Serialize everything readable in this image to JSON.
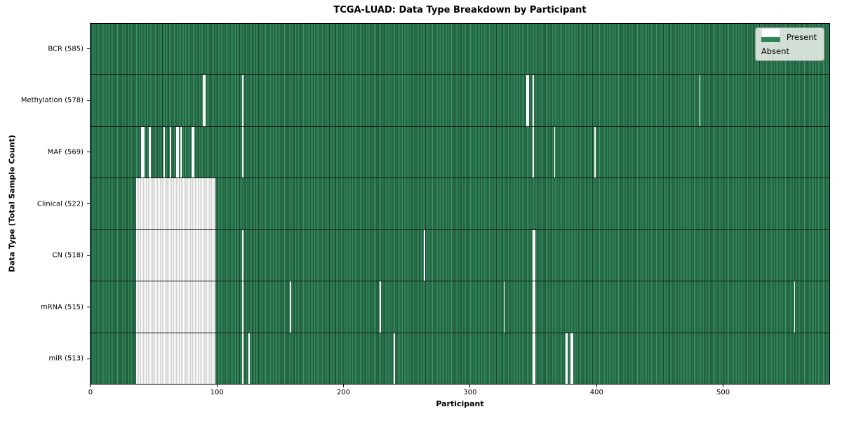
{
  "title": "TCGA-LUAD: Data Type Breakdown by Participant",
  "xlabel": "Participant",
  "ylabel": "Data Type (Total Sample Count)",
  "legend": {
    "present_label": "Present",
    "absent_label": "Absent"
  },
  "colors": {
    "present": "#2e8457",
    "present_dark": "#16402a",
    "absent": "#ffffff",
    "absent_edge": "#a8a8a8",
    "separator": "#141414",
    "legend_bg": "rgba(233,238,233,0.88)",
    "legend_border": "#999999"
  },
  "x_ticks": [
    0,
    100,
    200,
    300,
    400,
    500
  ],
  "chart_data": {
    "type": "heatmap",
    "title": "TCGA-LUAD: Data Type Breakdown by Participant",
    "xlabel": "Participant",
    "ylabel": "Data Type (Total Sample Count)",
    "legend_position": "upper right",
    "total_participants": 585,
    "xlim": [
      -0.5,
      584.5
    ],
    "x_ticks": [
      0,
      100,
      200,
      300,
      400,
      500
    ],
    "rows": [
      {
        "name": "BCR",
        "label": "BCR (585)",
        "present_count": 585,
        "absent_ranges": []
      },
      {
        "name": "Methylation",
        "label": "Methylation (578)",
        "present_count": 578,
        "absent_ranges": [
          [
            89,
            90
          ],
          [
            120,
            120
          ],
          [
            345,
            346
          ],
          [
            350,
            350
          ],
          [
            482,
            482
          ]
        ]
      },
      {
        "name": "MAF",
        "label": "MAF (569)",
        "present_count": 569,
        "absent_ranges": [
          [
            40,
            42
          ],
          [
            46,
            47
          ],
          [
            58,
            58
          ],
          [
            63,
            63
          ],
          [
            68,
            69
          ],
          [
            71,
            71
          ],
          [
            80,
            81
          ],
          [
            120,
            120
          ],
          [
            350,
            350
          ],
          [
            367,
            367
          ],
          [
            399,
            399
          ]
        ]
      },
      {
        "name": "Clinical",
        "label": "Clinical (522)",
        "present_count": 522,
        "absent_ranges": [
          [
            36,
            98
          ]
        ]
      },
      {
        "name": "CN",
        "label": "CN (518)",
        "present_count": 518,
        "absent_ranges": [
          [
            36,
            98
          ],
          [
            120,
            120
          ],
          [
            264,
            264
          ],
          [
            350,
            351
          ]
        ]
      },
      {
        "name": "mRNA",
        "label": "mRNA (515)",
        "present_count": 515,
        "absent_ranges": [
          [
            36,
            98
          ],
          [
            120,
            120
          ],
          [
            158,
            158
          ],
          [
            229,
            229
          ],
          [
            327,
            327
          ],
          [
            350,
            351
          ],
          [
            557,
            557
          ]
        ]
      },
      {
        "name": "miR",
        "label": "miR (513)",
        "present_count": 513,
        "absent_ranges": [
          [
            36,
            98
          ],
          [
            120,
            120
          ],
          [
            125,
            125
          ],
          [
            240,
            240
          ],
          [
            350,
            351
          ],
          [
            376,
            377
          ],
          [
            380,
            381
          ]
        ]
      }
    ]
  }
}
